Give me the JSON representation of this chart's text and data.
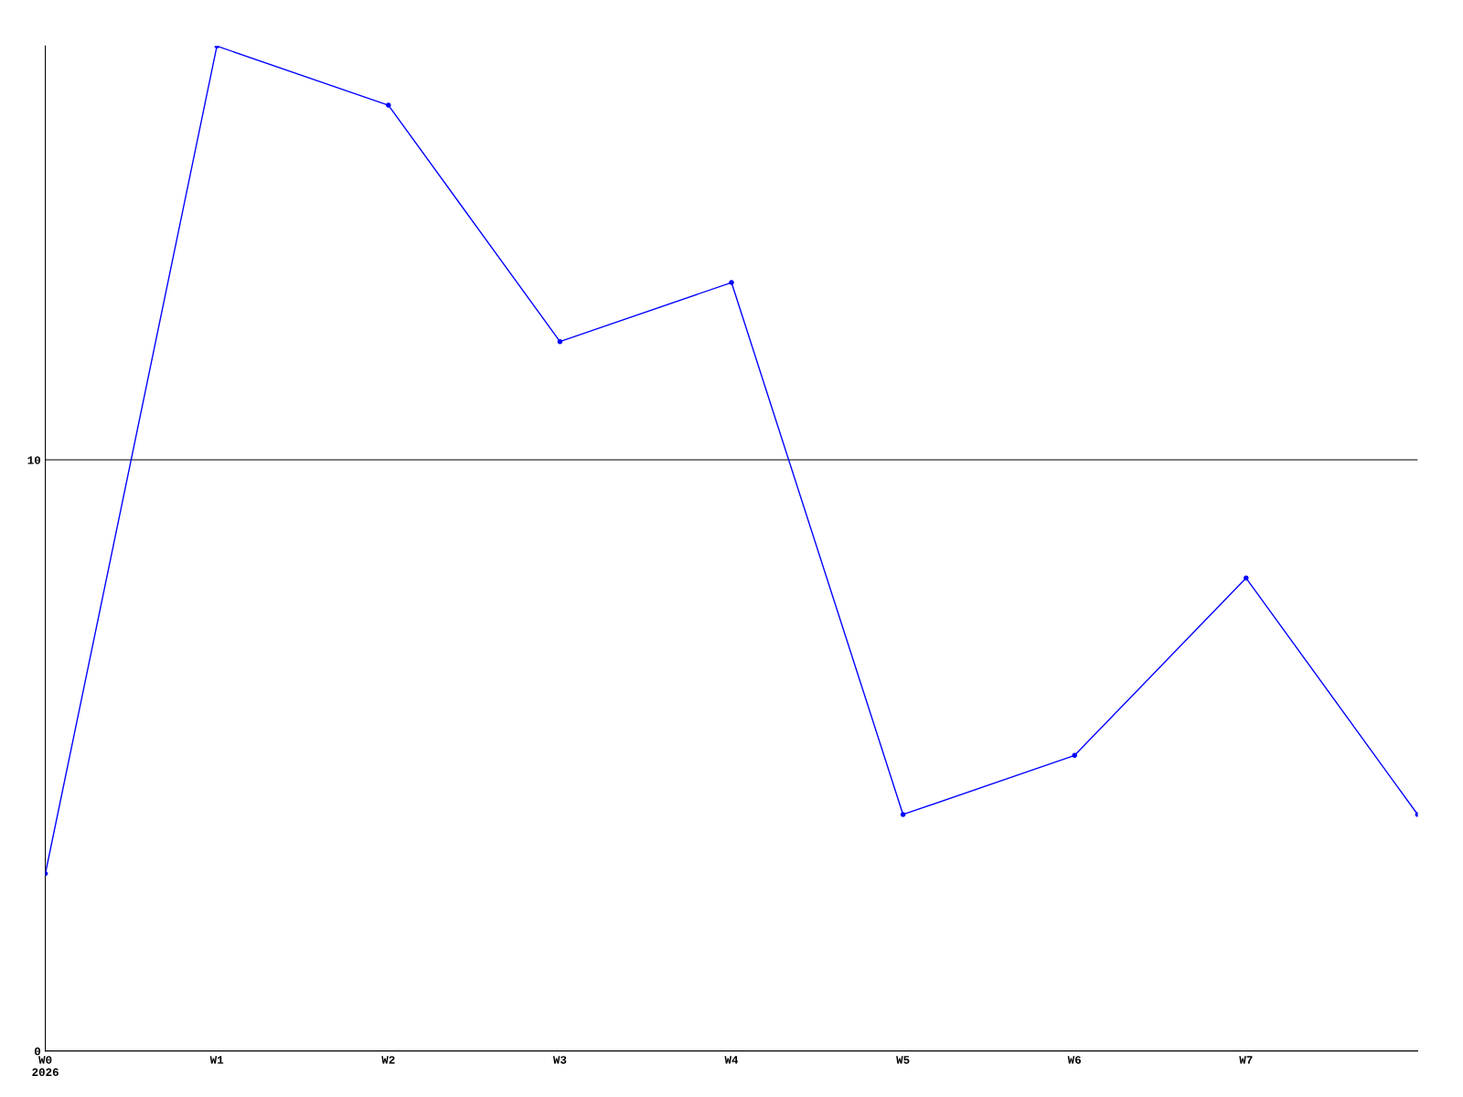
{
  "chart_data": {
    "type": "line",
    "categories": [
      "W0\n2026",
      "W1",
      "W2",
      "W3",
      "W4",
      "W5",
      "W6",
      "W7",
      null
    ],
    "series": [
      {
        "color": "#0000ff",
        "values": [
          3,
          17,
          16,
          12,
          13,
          4,
          5,
          8,
          4
        ]
      }
    ],
    "ylim": [
      0,
      17
    ],
    "yticks": [
      0,
      10
    ],
    "grid": "y",
    "marker": "circle",
    "line_style": "solid",
    "legend": false
  }
}
